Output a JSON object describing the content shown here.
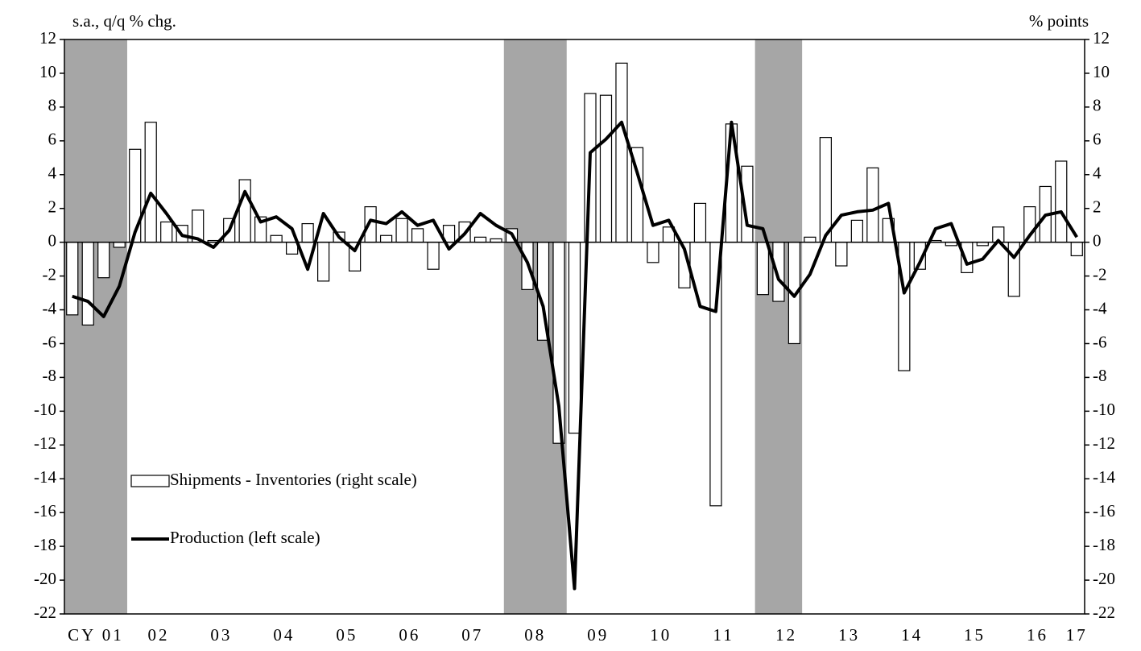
{
  "chart_data": {
    "type": "bar_line",
    "y_label": "s.a., q/q % chg.",
    "y2_label": "% points",
    "categories": [
      null,
      "CY 01",
      null,
      null,
      null,
      "02",
      null,
      null,
      null,
      "03",
      null,
      null,
      null,
      "04",
      null,
      null,
      null,
      "05",
      null,
      null,
      null,
      "06",
      null,
      null,
      null,
      "07",
      null,
      null,
      null,
      "08",
      null,
      null,
      null,
      "09",
      null,
      null,
      null,
      "10",
      null,
      null,
      null,
      "11",
      null,
      null,
      null,
      "12",
      null,
      null,
      null,
      "13",
      null,
      null,
      null,
      "14",
      null,
      null,
      null,
      "15",
      null,
      null,
      null,
      "16",
      null,
      null,
      "17"
    ],
    "shaded": [
      {
        "from": 0,
        "to": 3
      },
      {
        "from": 28,
        "to": 31
      },
      {
        "from": 44,
        "to": 46
      }
    ],
    "shade_color": "#a6a6a6",
    "series": [
      {
        "name": "Shipments - Inventories (right scale)",
        "type": "bar",
        "axis": "y2",
        "color": "#ffffff",
        "values": [
          -4.3,
          -4.9,
          -2.1,
          -0.3,
          5.5,
          7.1,
          1.2,
          1.0,
          1.9,
          0.1,
          1.4,
          3.7,
          1.5,
          0.4,
          -0.7,
          1.1,
          -2.3,
          0.6,
          -1.7,
          2.1,
          0.4,
          1.4,
          0.8,
          -1.6,
          1.0,
          1.2,
          0.3,
          0.2,
          0.8,
          -2.8,
          -5.8,
          -11.9,
          -11.3,
          8.8,
          8.7,
          10.6,
          5.6,
          -1.2,
          0.9,
          -2.7,
          2.3,
          -15.6,
          7.0,
          4.5,
          -3.1,
          -3.5,
          -6.0,
          0.3,
          6.2,
          -1.4,
          1.3,
          4.4,
          1.4,
          -7.6,
          -1.6,
          0.1,
          -0.2,
          -1.8,
          -0.2,
          0.9,
          -3.2,
          2.1,
          3.3,
          4.8,
          -0.8
        ]
      },
      {
        "name": "Production (left scale)",
        "type": "line",
        "axis": "y",
        "color": "#000000",
        "values": [
          -3.2,
          -3.5,
          -4.4,
          -2.6,
          0.6,
          2.9,
          1.7,
          0.4,
          0.2,
          -0.3,
          0.7,
          3.0,
          1.2,
          1.5,
          0.8,
          -1.6,
          1.7,
          0.3,
          -0.5,
          1.3,
          1.1,
          1.8,
          1.0,
          1.3,
          -0.4,
          0.5,
          1.7,
          1.0,
          0.5,
          -1.2,
          -3.8,
          -9.7,
          -20.5,
          5.3,
          6.1,
          7.1,
          4.1,
          1.0,
          1.3,
          -0.4,
          -3.8,
          -4.1,
          7.1,
          1.0,
          0.8,
          -2.2,
          -3.2,
          -1.9,
          0.4,
          1.6,
          1.8,
          1.9,
          2.3,
          -3.0,
          -1.2,
          0.8,
          1.1,
          -1.3,
          -1.0,
          0.1,
          -0.9,
          0.4,
          1.6,
          1.8,
          0.3
        ]
      }
    ],
    "ylim": [
      -22,
      12
    ],
    "yticks": [
      -22,
      -20,
      -18,
      -16,
      -14,
      -12,
      -10,
      -8,
      -6,
      -4,
      -2,
      0,
      2,
      4,
      6,
      8,
      10,
      12
    ],
    "y2lim": [
      -22,
      12
    ],
    "y2ticks": [
      -22,
      -20,
      -18,
      -16,
      -14,
      -12,
      -10,
      -8,
      -6,
      -4,
      -2,
      0,
      2,
      4,
      6,
      8,
      10,
      12
    ]
  }
}
